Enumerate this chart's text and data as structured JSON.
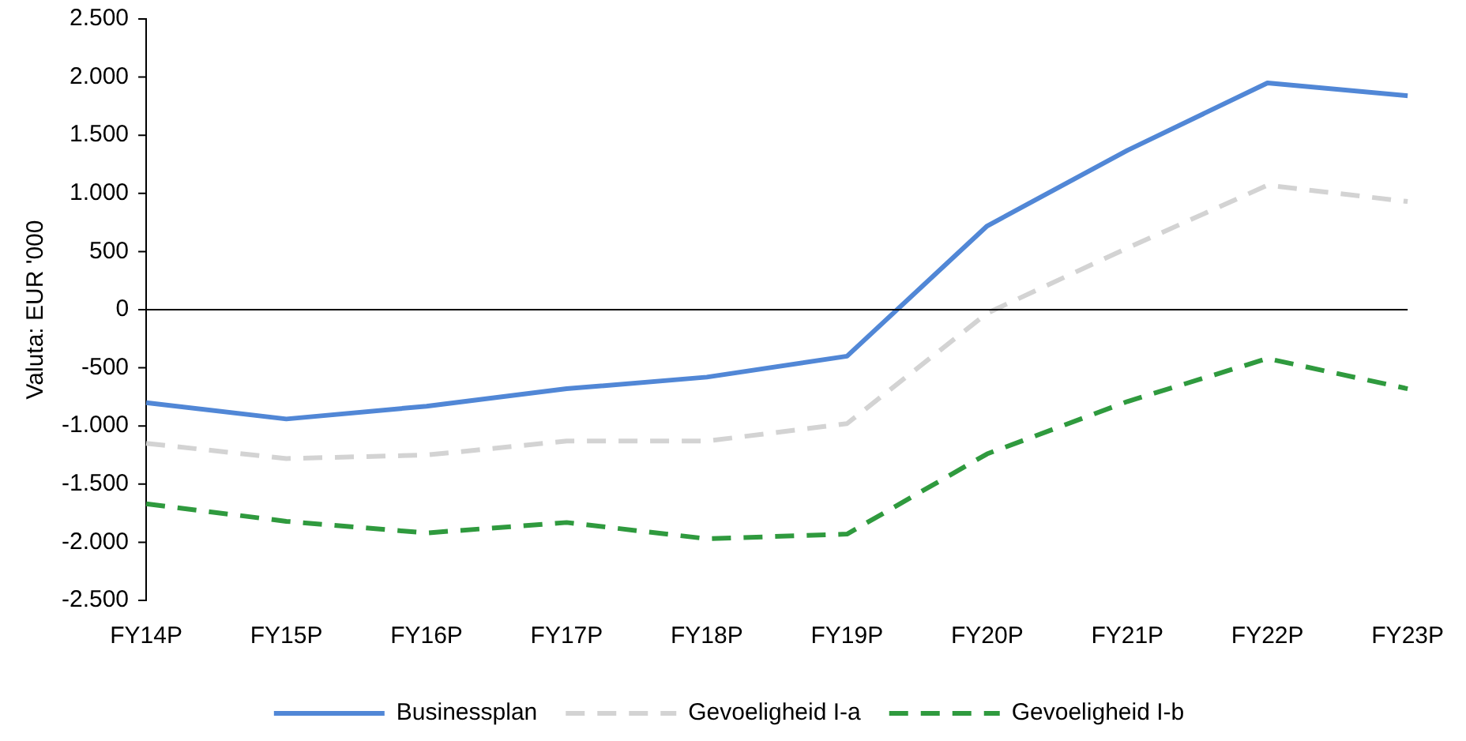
{
  "chart_data": {
    "type": "line",
    "ylabel": "Valuta: EUR '000",
    "categories": [
      "FY14P",
      "FY15P",
      "FY16P",
      "FY17P",
      "FY18P",
      "FY19P",
      "FY20P",
      "FY21P",
      "FY22P",
      "FY23P"
    ],
    "series": [
      {
        "name": "Businessplan",
        "color": "#5187d6",
        "line_style": "solid",
        "values": [
          -800,
          -940,
          -830,
          -680,
          -580,
          -400,
          720,
          1370,
          1950,
          1840
        ]
      },
      {
        "name": "Gevoeligheid I-a",
        "color": "#d3d3d3",
        "line_style": "dashed",
        "values": [
          -1150,
          -1280,
          -1250,
          -1130,
          -1130,
          -980,
          -30,
          530,
          1070,
          930
        ]
      },
      {
        "name": "Gevoeligheid I-b",
        "color": "#2f9a3e",
        "line_style": "dashed",
        "values": [
          -1670,
          -1820,
          -1920,
          -1830,
          -1970,
          -1930,
          -1240,
          -790,
          -420,
          -680
        ]
      }
    ],
    "ylim": [
      -2500,
      2500
    ],
    "yticks": [
      {
        "value": -2500,
        "label": "-2.500"
      },
      {
        "value": -2000,
        "label": "-2.000"
      },
      {
        "value": -1500,
        "label": "-1.500"
      },
      {
        "value": -1000,
        "label": "-1.000"
      },
      {
        "value": -500,
        "label": "-500"
      },
      0,
      500,
      {
        "value": 1000,
        "label": "1.000"
      },
      {
        "value": 1500,
        "label": "1.500"
      },
      {
        "value": 2000,
        "label": "2.000"
      },
      {
        "value": 2500,
        "label": "2.500"
      }
    ],
    "ref_lines": [
      {
        "axis": "y",
        "value": 0,
        "color": "#000000",
        "line_style": "solid"
      }
    ],
    "grid": false,
    "legend": "bottom",
    "marker": "none"
  }
}
